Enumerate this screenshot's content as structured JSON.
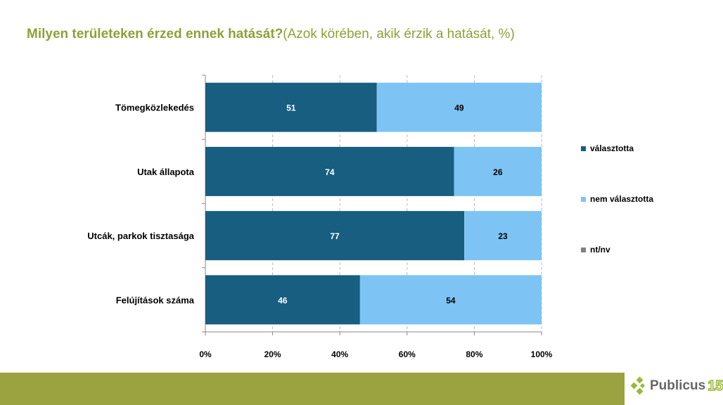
{
  "title": {
    "bold": "Milyen területeken érzed ennek hatását?",
    "normal": "(Azok körében, akik érzik a hatását, %)"
  },
  "chart_data": {
    "type": "bar",
    "orientation": "horizontal",
    "stacked": true,
    "categories": [
      "Tömegközlekedés",
      "Utak állapota",
      "Utcák, parkok tisztasága",
      "Felújítások száma"
    ],
    "series": [
      {
        "name": "választotta",
        "color": "#175E80",
        "values": [
          51,
          74,
          77,
          46
        ]
      },
      {
        "name": "nem választotta",
        "color": "#7DC3F3",
        "values": [
          49,
          26,
          23,
          54
        ]
      },
      {
        "name": "nt/nv",
        "color": "#808080",
        "values": [
          0,
          0,
          0,
          0
        ]
      }
    ],
    "xlim": [
      0,
      100
    ],
    "xticks": [
      "0%",
      "20%",
      "40%",
      "60%",
      "80%",
      "100%"
    ],
    "grid": true,
    "legend": "right"
  },
  "logo": {
    "text": "Publicus",
    "number": "15"
  }
}
